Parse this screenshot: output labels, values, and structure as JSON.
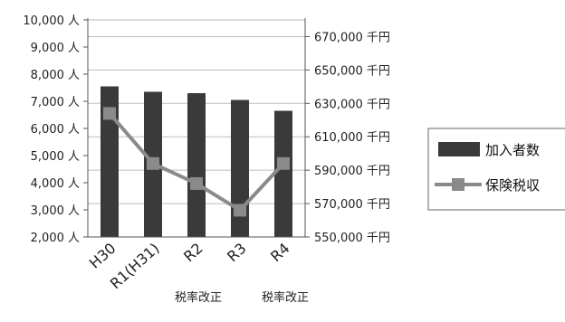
{
  "chart_data": {
    "type": "bar+line",
    "categories": [
      "H30",
      "R1(H31)",
      "R2",
      "R3",
      "R4"
    ],
    "category_notes": [
      "",
      "",
      "税率改正",
      "",
      "税率改正"
    ],
    "series": [
      {
        "name": "加入者数",
        "type": "bar",
        "axis": "left",
        "color": "#3a3a3a",
        "values": [
          7550,
          7350,
          7300,
          7050,
          6650
        ]
      },
      {
        "name": "保険税収",
        "type": "line",
        "axis": "right",
        "color": "#8a8a8a",
        "values": [
          624000,
          594000,
          582000,
          566000,
          594000
        ]
      }
    ],
    "y_left": {
      "min": 2000,
      "max": 10000,
      "step": 1000,
      "tick_labels": [
        "2,000 人",
        "3,000 人",
        "4,000 人",
        "5,000 人",
        "6,000 人",
        "7,000 人",
        "8,000 人",
        "9,000 人",
        "10,000 人"
      ]
    },
    "y_right": {
      "min": 550000,
      "max": 680000,
      "step": 20000,
      "tick_labels": [
        "550,000 千円",
        "570,000 千円",
        "590,000 千円",
        "610,000 千円",
        "630,000 千円",
        "650,000 千円",
        "670,000 千円"
      ]
    },
    "grid": true,
    "legend": "right"
  }
}
